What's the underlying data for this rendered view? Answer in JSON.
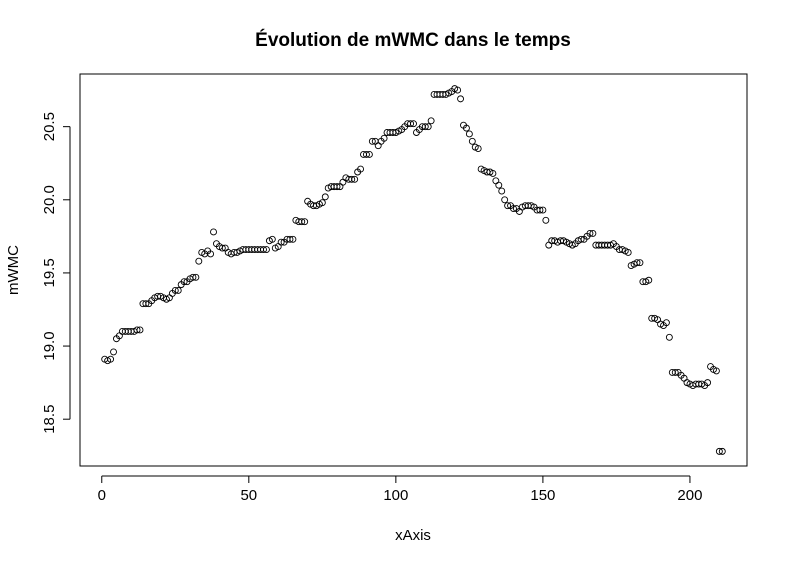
{
  "chart_data": {
    "type": "scatter",
    "title": "Évolution de mWMC dans le temps",
    "x_label": "xAxis",
    "y_label": "mWMC",
    "xlim": [
      -7.4,
      219.4
    ],
    "ylim": [
      18.18,
      20.86
    ],
    "xticks": [
      0,
      50,
      100,
      150,
      200
    ],
    "yticks": [
      18.5,
      {
        "value": 19,
        "label": "19.0"
      },
      19.5,
      {
        "value": 20,
        "label": "20.0"
      },
      20.5
    ],
    "color": "#000000",
    "x": [
      1,
      2,
      3,
      4,
      5,
      6,
      7,
      8,
      9,
      10,
      11,
      12,
      13,
      14,
      15,
      16,
      17,
      18,
      19,
      20,
      21,
      22,
      23,
      24,
      25,
      26,
      27,
      28,
      29,
      30,
      31,
      32,
      33,
      34,
      35,
      36,
      37,
      38,
      39,
      40,
      41,
      42,
      43,
      44,
      45,
      46,
      47,
      48,
      49,
      50,
      51,
      52,
      53,
      54,
      55,
      56,
      57,
      58,
      59,
      60,
      61,
      62,
      63,
      64,
      65,
      66,
      67,
      68,
      69,
      70,
      71,
      72,
      73,
      74,
      75,
      76,
      77,
      78,
      79,
      80,
      81,
      82,
      83,
      84,
      85,
      86,
      87,
      88,
      89,
      90,
      91,
      92,
      93,
      94,
      95,
      96,
      97,
      98,
      99,
      100,
      101,
      102,
      103,
      104,
      105,
      106,
      107,
      108,
      109,
      110,
      111,
      112,
      113,
      114,
      115,
      116,
      117,
      118,
      119,
      120,
      121,
      122,
      123,
      124,
      125,
      126,
      127,
      128,
      129,
      130,
      131,
      132,
      133,
      134,
      135,
      136,
      137,
      138,
      139,
      140,
      141,
      142,
      143,
      144,
      145,
      146,
      147,
      148,
      149,
      150,
      151,
      152,
      153,
      154,
      155,
      156,
      157,
      158,
      159,
      160,
      161,
      162,
      163,
      164,
      165,
      166,
      167,
      168,
      169,
      170,
      171,
      172,
      173,
      174,
      175,
      176,
      177,
      178,
      179,
      180,
      181,
      182,
      183,
      184,
      185,
      186,
      187,
      188,
      189,
      190,
      191,
      192,
      193,
      194,
      195,
      196,
      197,
      198,
      199,
      200,
      201,
      202,
      203,
      204,
      205,
      206,
      207,
      208,
      209,
      210,
      211
    ],
    "values": [
      18.91,
      18.9,
      18.91,
      18.96,
      19.05,
      19.07,
      19.1,
      19.1,
      19.1,
      19.1,
      19.1,
      19.11,
      19.11,
      19.29,
      19.29,
      19.29,
      19.31,
      19.33,
      19.34,
      19.34,
      19.33,
      19.32,
      19.33,
      19.36,
      19.38,
      19.38,
      19.42,
      19.44,
      19.44,
      19.46,
      19.47,
      19.47,
      19.58,
      19.64,
      19.63,
      19.65,
      19.63,
      19.78,
      19.7,
      19.68,
      19.67,
      19.67,
      19.64,
      19.63,
      19.64,
      19.64,
      19.65,
      19.66,
      19.66,
      19.66,
      19.66,
      19.66,
      19.66,
      19.66,
      19.66,
      19.66,
      19.72,
      19.73,
      19.67,
      19.68,
      19.71,
      19.71,
      19.73,
      19.73,
      19.73,
      19.86,
      19.85,
      19.85,
      19.85,
      19.99,
      19.97,
      19.96,
      19.96,
      19.97,
      19.98,
      20.02,
      20.08,
      20.09,
      20.09,
      20.09,
      20.09,
      20.12,
      20.15,
      20.14,
      20.14,
      20.14,
      20.19,
      20.21,
      20.31,
      20.31,
      20.31,
      20.4,
      20.4,
      20.37,
      20.4,
      20.42,
      20.46,
      20.46,
      20.46,
      20.46,
      20.47,
      20.48,
      20.5,
      20.52,
      20.52,
      20.52,
      20.46,
      20.48,
      20.5,
      20.5,
      20.5,
      20.54,
      20.72,
      20.72,
      20.72,
      20.72,
      20.72,
      20.73,
      20.74,
      20.76,
      20.75,
      20.69,
      20.51,
      20.49,
      20.45,
      20.4,
      20.36,
      20.35,
      20.21,
      20.2,
      20.19,
      20.19,
      20.18,
      20.13,
      20.1,
      20.06,
      20.0,
      19.96,
      19.96,
      19.94,
      19.94,
      19.92,
      19.95,
      19.96,
      19.96,
      19.96,
      19.95,
      19.93,
      19.93,
      19.93,
      19.86,
      19.69,
      19.72,
      19.72,
      19.71,
      19.72,
      19.72,
      19.71,
      19.7,
      19.69,
      19.7,
      19.72,
      19.73,
      19.73,
      19.75,
      19.77,
      19.77,
      19.69,
      19.69,
      19.69,
      19.69,
      19.69,
      19.69,
      19.7,
      19.68,
      19.66,
      19.66,
      19.65,
      19.64,
      19.55,
      19.56,
      19.57,
      19.57,
      19.44,
      19.44,
      19.45,
      19.19,
      19.19,
      19.18,
      19.15,
      19.14,
      19.16,
      19.06,
      18.82,
      18.82,
      18.82,
      18.8,
      18.78,
      18.75,
      18.74,
      18.73,
      18.74,
      18.74,
      18.74,
      18.73,
      18.75,
      18.86,
      18.84,
      18.83,
      18.28,
      18.28
    ]
  }
}
